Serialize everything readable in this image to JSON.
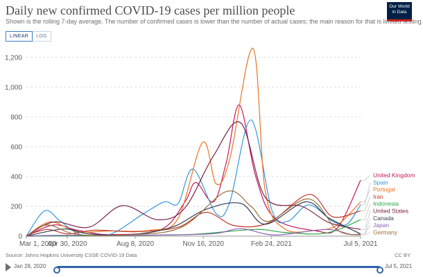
{
  "header": {
    "title": "Daily new confirmed COVID-19 cases per million people",
    "subtitle": "Shown is the rolling 7-day average. The number of confirmed cases is lower than the number of actual cases; the main reason for that is limited testing.",
    "logo_line1": "Our World",
    "logo_line2": "in Data"
  },
  "controls": {
    "linear_label": "LINEAR",
    "log_label": "LOG",
    "active": "linear"
  },
  "footer": {
    "source": "Source: Johns Hopkins University CSSE COVID-19 Data",
    "license": "CC BY"
  },
  "timeline": {
    "start_label": "Jan 28, 2020",
    "end_label": "Jul 5, 2021",
    "start_fraction": 0.0,
    "end_fraction": 1.0
  },
  "chart_data": {
    "type": "line",
    "title": "Daily new confirmed COVID-19 cases per million people",
    "xlabel": "",
    "ylabel": "",
    "x_range": [
      "2020-03-01",
      "2021-07-05"
    ],
    "ylim": [
      0,
      1250
    ],
    "y_ticks": [
      0,
      200,
      400,
      600,
      800,
      1000,
      1200
    ],
    "y_tick_labels": [
      "0",
      "200",
      "400",
      "600",
      "800",
      "1,000",
      "1,200"
    ],
    "x_ticks": [
      "2020-03-01",
      "2020-04-30",
      "2020-08-08",
      "2020-11-16",
      "2021-02-24",
      "2021-07-05"
    ],
    "x_tick_labels": [
      "Mar 1, 2020",
      "Apr 30, 2020",
      "Aug 8, 2020",
      "Nov 16, 2020",
      "Feb 24, 2021",
      "Jul 5, 2021"
    ],
    "grid": "horizontal-dashed",
    "legend_position": "right",
    "series": [
      {
        "name": "United Kingdom",
        "color": "#c2185b",
        "points": [
          [
            "2020-03-01",
            0
          ],
          [
            "2020-04-10",
            75
          ],
          [
            "2020-05-15",
            40
          ],
          [
            "2020-07-01",
            10
          ],
          [
            "2020-09-15",
            45
          ],
          [
            "2020-10-20",
            230
          ],
          [
            "2020-11-05",
            360
          ],
          [
            "2020-12-01",
            230
          ],
          [
            "2020-12-20",
            500
          ],
          [
            "2021-01-08",
            880
          ],
          [
            "2021-02-01",
            400
          ],
          [
            "2021-03-01",
            120
          ],
          [
            "2021-05-01",
            35
          ],
          [
            "2021-06-01",
            55
          ],
          [
            "2021-07-05",
            375
          ]
        ]
      },
      {
        "name": "Spain",
        "color": "#3498db",
        "points": [
          [
            "2020-03-01",
            0
          ],
          [
            "2020-03-28",
            170
          ],
          [
            "2020-04-20",
            100
          ],
          [
            "2020-05-20",
            10
          ],
          [
            "2020-07-01",
            10
          ],
          [
            "2020-08-20",
            150
          ],
          [
            "2020-09-20",
            230
          ],
          [
            "2020-10-10",
            220
          ],
          [
            "2020-11-01",
            450
          ],
          [
            "2020-12-05",
            150
          ],
          [
            "2020-12-25",
            230
          ],
          [
            "2021-01-25",
            780
          ],
          [
            "2021-02-25",
            170
          ],
          [
            "2021-03-20",
            100
          ],
          [
            "2021-04-20",
            210
          ],
          [
            "2021-05-25",
            100
          ],
          [
            "2021-06-15",
            80
          ],
          [
            "2021-07-05",
            210
          ]
        ]
      },
      {
        "name": "Portugal",
        "color": "#e87320",
        "points": [
          [
            "2020-03-01",
            0
          ],
          [
            "2020-04-05",
            95
          ],
          [
            "2020-05-15",
            30
          ],
          [
            "2020-07-01",
            35
          ],
          [
            "2020-09-01",
            40
          ],
          [
            "2020-10-10",
            120
          ],
          [
            "2020-11-15",
            630
          ],
          [
            "2020-12-05",
            350
          ],
          [
            "2020-12-25",
            520
          ],
          [
            "2021-01-28",
            1260
          ],
          [
            "2021-02-15",
            300
          ],
          [
            "2021-03-15",
            50
          ],
          [
            "2021-05-01",
            40
          ],
          [
            "2021-06-01",
            75
          ],
          [
            "2021-07-05",
            230
          ]
        ]
      },
      {
        "name": "Iran",
        "color": "#c0392b",
        "points": [
          [
            "2020-03-01",
            5
          ],
          [
            "2020-04-01",
            45
          ],
          [
            "2020-05-01",
            15
          ],
          [
            "2020-06-10",
            40
          ],
          [
            "2020-08-10",
            30
          ],
          [
            "2020-10-10",
            60
          ],
          [
            "2020-11-20",
            160
          ],
          [
            "2021-01-01",
            70
          ],
          [
            "2021-02-20",
            90
          ],
          [
            "2021-04-20",
            280
          ],
          [
            "2021-05-25",
            130
          ],
          [
            "2021-07-05",
            170
          ]
        ]
      },
      {
        "name": "Indonesia",
        "color": "#27a844",
        "points": [
          [
            "2020-03-01",
            0
          ],
          [
            "2020-08-01",
            5
          ],
          [
            "2020-11-01",
            12
          ],
          [
            "2021-01-30",
            45
          ],
          [
            "2021-03-15",
            25
          ],
          [
            "2021-05-15",
            20
          ],
          [
            "2021-07-05",
            110
          ]
        ]
      },
      {
        "name": "United States",
        "color": "#7a2048",
        "points": [
          [
            "2020-03-01",
            0
          ],
          [
            "2020-04-10",
            95
          ],
          [
            "2020-06-01",
            60
          ],
          [
            "2020-07-20",
            205
          ],
          [
            "2020-09-10",
            110
          ],
          [
            "2020-10-20",
            190
          ],
          [
            "2020-12-01",
            540
          ],
          [
            "2021-01-10",
            760
          ],
          [
            "2021-02-15",
            260
          ],
          [
            "2021-04-10",
            200
          ],
          [
            "2021-05-20",
            90
          ],
          [
            "2021-07-05",
            45
          ]
        ]
      },
      {
        "name": "Canada",
        "color": "#2e3c50",
        "points": [
          [
            "2020-03-01",
            0
          ],
          [
            "2020-04-25",
            48
          ],
          [
            "2020-06-01",
            15
          ],
          [
            "2020-08-01",
            10
          ],
          [
            "2020-10-01",
            60
          ],
          [
            "2020-11-20",
            180
          ],
          [
            "2021-01-10",
            220
          ],
          [
            "2021-02-15",
            80
          ],
          [
            "2021-04-15",
            230
          ],
          [
            "2021-05-20",
            120
          ],
          [
            "2021-07-05",
            15
          ]
        ]
      },
      {
        "name": "Japan",
        "color": "#8e5fb5",
        "points": [
          [
            "2020-03-01",
            0
          ],
          [
            "2020-04-15",
            5
          ],
          [
            "2020-07-20",
            6
          ],
          [
            "2020-11-25",
            15
          ],
          [
            "2021-01-10",
            50
          ],
          [
            "2021-03-01",
            8
          ],
          [
            "2021-05-15",
            45
          ],
          [
            "2021-06-20",
            12
          ],
          [
            "2021-07-05",
            15
          ]
        ]
      },
      {
        "name": "Germany",
        "color": "#996d39",
        "points": [
          [
            "2020-03-01",
            0
          ],
          [
            "2020-04-01",
            75
          ],
          [
            "2020-05-15",
            10
          ],
          [
            "2020-08-01",
            10
          ],
          [
            "2020-10-15",
            60
          ],
          [
            "2020-12-20",
            300
          ],
          [
            "2021-01-25",
            200
          ],
          [
            "2021-02-20",
            100
          ],
          [
            "2021-04-20",
            250
          ],
          [
            "2021-06-01",
            40
          ],
          [
            "2021-07-05",
            8
          ]
        ]
      }
    ]
  }
}
